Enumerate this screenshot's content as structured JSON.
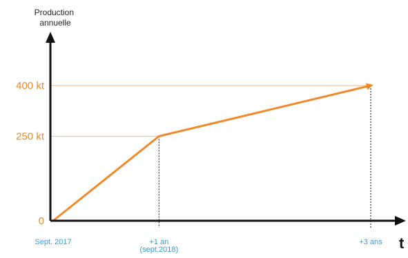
{
  "chart_data": {
    "type": "line",
    "ylabel_lines": [
      "Production",
      "annuelle"
    ],
    "xlabel": "t",
    "y_ticks": [
      {
        "value": 0,
        "label": "0"
      },
      {
        "value": 250,
        "label": "250 kt"
      },
      {
        "value": 400,
        "label": "400 kt"
      }
    ],
    "x_ticks": [
      {
        "x": 0,
        "lines": [
          "Sept. 2017"
        ]
      },
      {
        "x": 1,
        "lines": [
          "+1 an",
          "(sept.2018)"
        ]
      },
      {
        "x": 3,
        "lines": [
          "+3 ans"
        ]
      }
    ],
    "series": [
      {
        "points": [
          {
            "x": 0,
            "y": 0
          },
          {
            "x": 1,
            "y": 250
          },
          {
            "x": 3,
            "y": 400
          }
        ]
      }
    ],
    "xlim": [
      0,
      3
    ],
    "ylim": [
      0,
      400
    ],
    "grid": false,
    "colors": {
      "line": "#f0892a",
      "guide": "#f6c597",
      "ytick": "#ee8a2a",
      "xtick": "#3a9ad9",
      "axis": "#111111",
      "dotted": "#333333"
    }
  }
}
